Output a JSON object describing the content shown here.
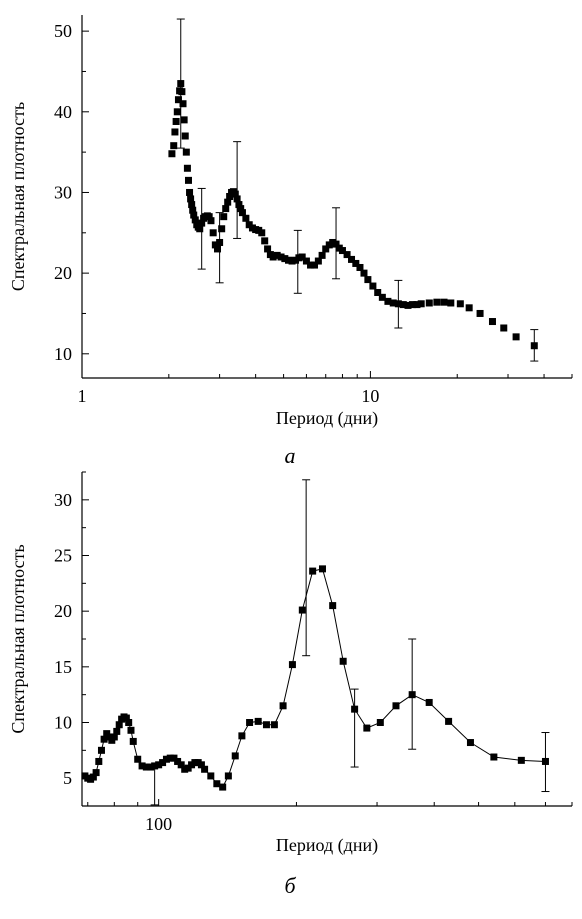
{
  "chart_data": [
    {
      "type": "scatter",
      "panel_label": "а",
      "xlabel": "Период (дни)",
      "ylabel": "Спектральная плотность",
      "x_scale": "log",
      "xlim": [
        1,
        50
      ],
      "ylim": [
        7,
        52
      ],
      "x_ticks": [
        1,
        10
      ],
      "x_tick_labels": [
        "1",
        "10"
      ],
      "y_ticks": [
        10,
        20,
        30,
        40,
        50
      ],
      "y_tick_labels": [
        "10",
        "20",
        "30",
        "40",
        "50"
      ],
      "x": [
        2.05,
        2.08,
        2.1,
        2.12,
        2.14,
        2.16,
        2.18,
        2.2,
        2.22,
        2.24,
        2.26,
        2.28,
        2.3,
        2.32,
        2.34,
        2.36,
        2.38,
        2.4,
        2.42,
        2.44,
        2.47,
        2.5,
        2.53,
        2.56,
        2.6,
        2.64,
        2.68,
        2.72,
        2.76,
        2.8,
        2.85,
        2.9,
        2.95,
        3.0,
        3.05,
        3.1,
        3.15,
        3.2,
        3.25,
        3.3,
        3.35,
        3.4,
        3.45,
        3.5,
        3.55,
        3.6,
        3.7,
        3.8,
        3.9,
        4.0,
        4.1,
        4.2,
        4.3,
        4.4,
        4.5,
        4.6,
        4.75,
        4.9,
        5.05,
        5.2,
        5.35,
        5.5,
        5.65,
        5.8,
        6.0,
        6.2,
        6.4,
        6.6,
        6.8,
        7.0,
        7.2,
        7.4,
        7.6,
        7.8,
        8.0,
        8.3,
        8.6,
        8.9,
        9.2,
        9.5,
        9.8,
        10.2,
        10.6,
        11.0,
        11.5,
        12.0,
        12.5,
        13.0,
        13.5,
        14.0,
        14.5,
        15.0,
        16.0,
        17.0,
        18.0,
        19.0,
        20.5,
        22.0,
        24.0,
        26.5,
        29.0,
        32.0,
        37.0
      ],
      "y": [
        34.8,
        35.8,
        37.5,
        38.8,
        40.0,
        41.5,
        42.6,
        43.5,
        42.5,
        41.0,
        39.0,
        37.0,
        35.0,
        33.0,
        31.5,
        30.0,
        29.2,
        28.5,
        27.8,
        27.2,
        26.6,
        26.0,
        25.7,
        25.5,
        26.2,
        26.8,
        27.0,
        27.1,
        27.0,
        26.5,
        25.0,
        23.5,
        23.0,
        23.8,
        25.5,
        27.0,
        28.0,
        28.8,
        29.5,
        30.0,
        30.1,
        29.8,
        29.2,
        28.5,
        28.0,
        27.5,
        26.8,
        26.0,
        25.6,
        25.4,
        25.3,
        25.0,
        24.0,
        23.0,
        22.3,
        22.0,
        22.2,
        22.0,
        21.8,
        21.6,
        21.5,
        21.6,
        21.9,
        22.0,
        21.5,
        21.0,
        21.0,
        21.5,
        22.2,
        23.0,
        23.5,
        23.8,
        23.6,
        23.1,
        22.8,
        22.3,
        21.7,
        21.2,
        20.7,
        20.0,
        19.2,
        18.4,
        17.6,
        17.0,
        16.5,
        16.3,
        16.2,
        16.1,
        16.0,
        16.1,
        16.1,
        16.2,
        16.3,
        16.4,
        16.4,
        16.3,
        16.2,
        15.7,
        15.0,
        14.0,
        13.2,
        12.1,
        11.0
      ]
    },
    {
      "type": "line",
      "panel_label": "б",
      "xlabel": "Период (дни)",
      "ylabel": "Спектральная плотность",
      "x_scale": "log",
      "xlim": [
        68,
        800
      ],
      "ylim": [
        2.5,
        32.5
      ],
      "x_ticks": [
        100
      ],
      "x_tick_labels": [
        "100"
      ],
      "y_ticks": [
        5,
        10,
        15,
        20,
        25,
        30
      ],
      "y_tick_labels": [
        "5",
        "10",
        "15",
        "20",
        "25",
        "30"
      ],
      "x": [
        69,
        70,
        71,
        72,
        73,
        74,
        75,
        76,
        77,
        78,
        79,
        80,
        81,
        82,
        83,
        84,
        85,
        86,
        87,
        88,
        90,
        92,
        94,
        96,
        98,
        100,
        102,
        104,
        106,
        108,
        110,
        112,
        114,
        116,
        118,
        120,
        122,
        124,
        126,
        130,
        134,
        138,
        142,
        147,
        152,
        158,
        165,
        172,
        179,
        187,
        196,
        206,
        217,
        228,
        240,
        253,
        268,
        285,
        305,
        330,
        358,
        390,
        430,
        480,
        540,
        620,
        700
      ],
      "y": [
        5.2,
        5.0,
        4.9,
        5.1,
        5.5,
        6.5,
        7.5,
        8.5,
        9.0,
        8.7,
        8.4,
        8.7,
        9.2,
        9.8,
        10.3,
        10.5,
        10.4,
        10.0,
        9.3,
        8.3,
        6.7,
        6.1,
        6.0,
        6.0,
        6.1,
        6.2,
        6.4,
        6.7,
        6.8,
        6.8,
        6.5,
        6.2,
        5.8,
        5.9,
        6.2,
        6.4,
        6.4,
        6.2,
        5.8,
        5.2,
        4.5,
        4.2,
        5.2,
        7.0,
        8.8,
        10.0,
        10.1,
        9.8,
        9.8,
        11.5,
        15.2,
        20.1,
        23.6,
        23.8,
        20.5,
        15.5,
        11.2,
        9.5,
        10.0,
        11.5,
        12.5,
        11.8,
        10.1,
        8.2,
        6.9,
        6.6,
        6.5
      ]
    }
  ]
}
